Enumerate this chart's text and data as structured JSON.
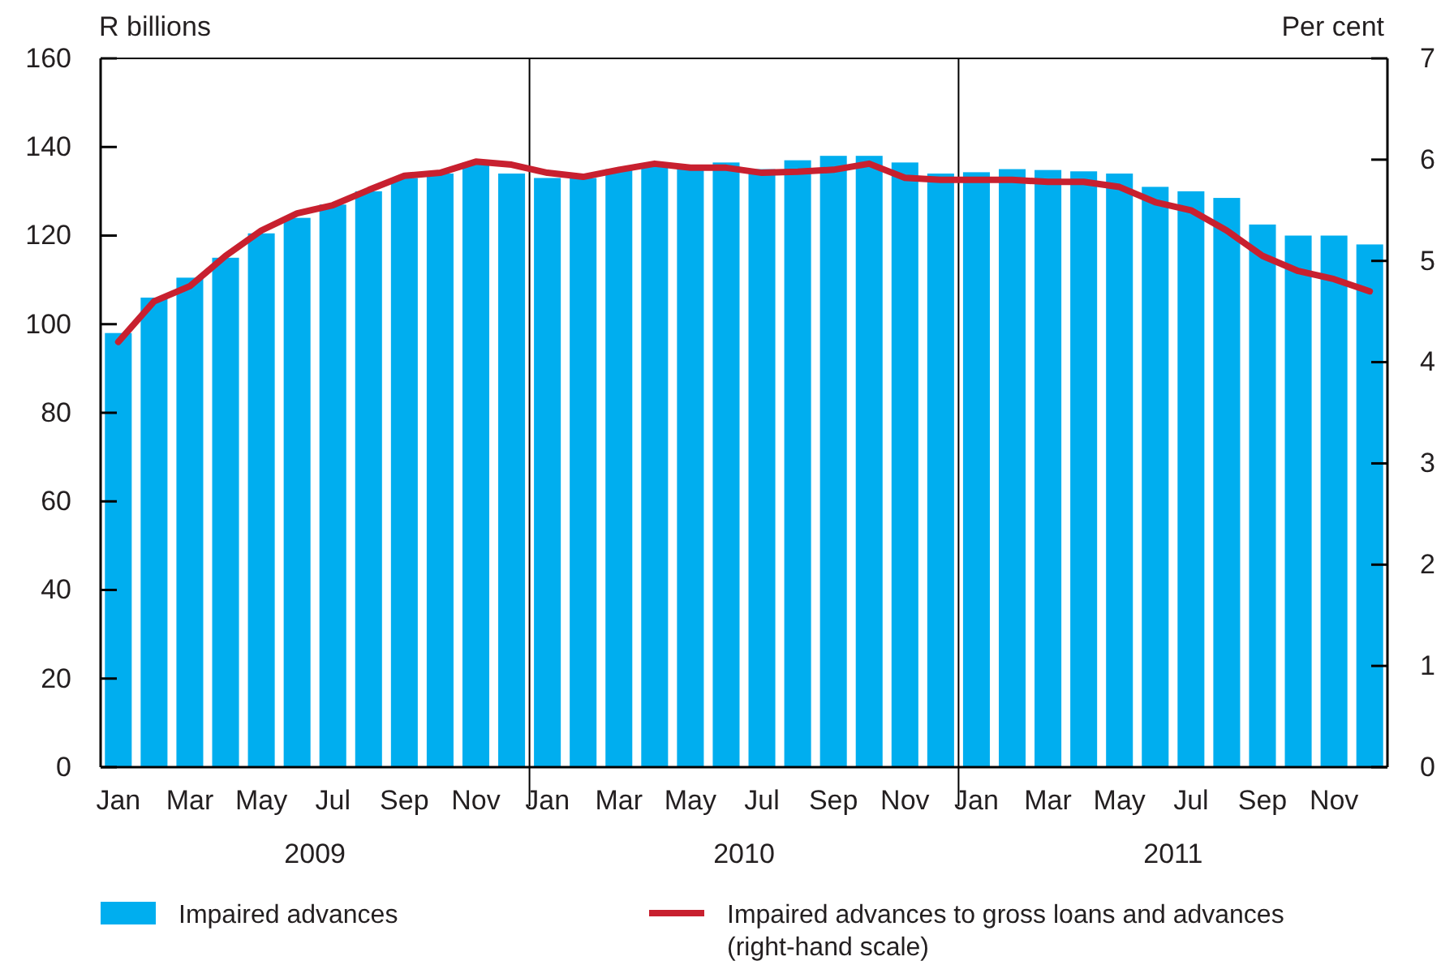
{
  "chart_data": {
    "type": "bar",
    "ylabel": "R billions",
    "y2label": "Per cent",
    "categories": [
      "Jan",
      null,
      "Mar",
      null,
      "May",
      null,
      "Jul",
      null,
      "Sep",
      null,
      "Nov",
      null,
      "Jan",
      null,
      "Mar",
      null,
      "May",
      null,
      "Jul",
      null,
      "Sep",
      null,
      "Nov",
      null,
      "Jan",
      null,
      "Mar",
      null,
      "May",
      null,
      "Jul",
      null,
      "Sep",
      null,
      "Nov",
      null
    ],
    "series": [
      {
        "name": "Impaired advances",
        "color": "#00aeef",
        "values": [
          98,
          106,
          110.5,
          115,
          120.5,
          124,
          127,
          130,
          133,
          134,
          136.5,
          134,
          133,
          133,
          135,
          136,
          136,
          136.5,
          135,
          137,
          138,
          138,
          136.5,
          134,
          134.3,
          135,
          134.8,
          134.5,
          134,
          131,
          130,
          128.5,
          122.5,
          120,
          120,
          118
        ]
      },
      {
        "name": "Impaired advances to gross loans and advances (right-hand scale)",
        "type": "line",
        "axis": "y2",
        "color": "#c8202f",
        "values": [
          4.2,
          4.6,
          4.75,
          5.05,
          5.3,
          5.47,
          5.55,
          5.7,
          5.84,
          5.87,
          5.98,
          5.95,
          5.87,
          5.83,
          5.9,
          5.96,
          5.92,
          5.92,
          5.87,
          5.88,
          5.9,
          5.96,
          5.82,
          5.8,
          5.8,
          5.8,
          5.78,
          5.78,
          5.73,
          5.58,
          5.5,
          5.3,
          5.05,
          4.9,
          4.82,
          4.7
        ]
      }
    ],
    "ylim": [
      0,
      160
    ],
    "yticks": [
      0,
      20,
      40,
      60,
      80,
      100,
      120,
      140,
      160
    ],
    "y2lim": [
      0,
      7
    ],
    "y2ticks": [
      0,
      1,
      2,
      3,
      4,
      5,
      6,
      7
    ],
    "annotations": [
      "2009",
      "2010",
      "2011"
    ],
    "legend": "bottom",
    "grid": false
  }
}
